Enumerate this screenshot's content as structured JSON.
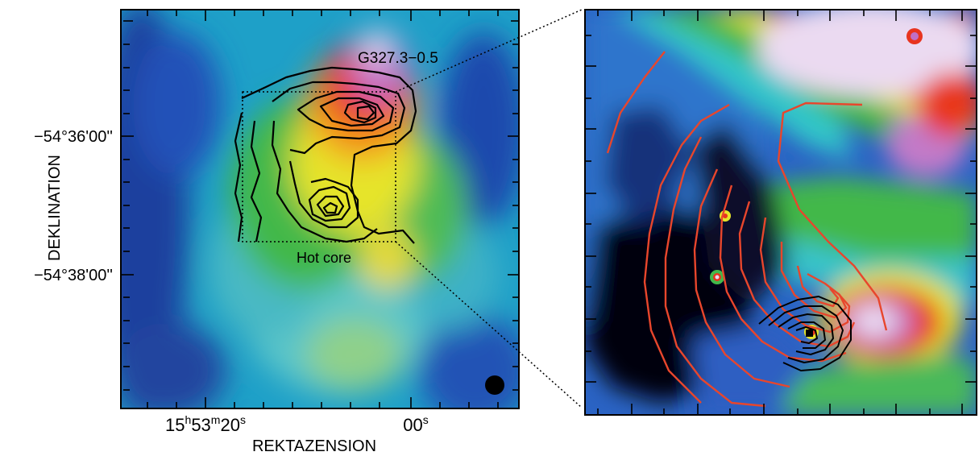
{
  "left_panel": {
    "source_label": "G327.3−0.5",
    "hot_core_label": "Hot core",
    "y_axis": {
      "label": "DEKLINATION",
      "ticks": [
        "−54°36'00''",
        "−54°38'00''"
      ]
    },
    "x_axis": {
      "label": "REKTAZENSION",
      "ticks": [
        {
          "h": "15",
          "h_unit": "h",
          "m": "53",
          "m_unit": "m",
          "s": "20",
          "s_unit": "s"
        },
        {
          "s": "00",
          "s_unit": "s"
        }
      ]
    }
  },
  "colors": {
    "contour_left": "#000000",
    "contour_right_outer": "#e8462c",
    "contour_right_inner": "#000000",
    "zoom_line": "#000000"
  }
}
